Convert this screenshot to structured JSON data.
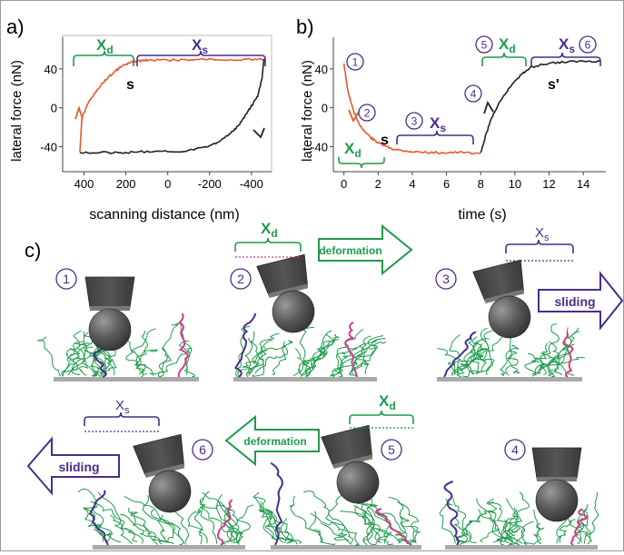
{
  "panels": {
    "a": {
      "letter": "a)"
    },
    "b": {
      "letter": "b)"
    },
    "c": {
      "letter": "c)"
    }
  },
  "chart_data": [
    {
      "type": "line",
      "panel": "a",
      "xlabel": "scanning distance (nm)",
      "ylabel": "lateral force (nN)",
      "xticks": [
        "400",
        "200",
        "0",
        "-200",
        "-400"
      ],
      "yticks": [
        "40",
        "0",
        "-40"
      ],
      "xlim": [
        450,
        -470
      ],
      "ylim": [
        -60,
        65
      ],
      "series": [
        {
          "color": "#e8582e",
          "x": [
            420,
            410,
            380,
            340,
            300,
            260,
            230,
            200,
            170,
            140,
            100,
            0,
            -100,
            -200,
            -300,
            -400,
            -460
          ],
          "y": [
            -46,
            -10,
            5,
            18,
            28,
            36,
            41,
            45,
            47,
            48,
            49,
            49,
            49,
            50,
            49,
            50,
            50
          ]
        },
        {
          "color": "#222222",
          "x": [
            -460,
            -450,
            -430,
            -400,
            -370,
            -340,
            -300,
            -260,
            -200,
            -100,
            0,
            100,
            200,
            300,
            420
          ],
          "y": [
            50,
            30,
            12,
            2,
            -8,
            -18,
            -26,
            -33,
            -39,
            -44,
            -45,
            -45,
            -46,
            -46,
            -46
          ]
        }
      ],
      "annotations": {
        "xd": "X",
        "xd_sub": "d",
        "xs": "X",
        "xs_sub": "s",
        "s": "s"
      }
    },
    {
      "type": "line",
      "panel": "b",
      "xlabel": "time (s)",
      "ylabel": "lateral force (nN)",
      "xticks": [
        "0",
        "2",
        "4",
        "6",
        "8",
        "10",
        "12",
        "14"
      ],
      "yticks": [
        "40",
        "0",
        "-40"
      ],
      "xlim": [
        -0.3,
        15
      ],
      "ylim": [
        -60,
        65
      ],
      "series": [
        {
          "color": "#e8582e",
          "x": [
            0,
            0.2,
            0.5,
            0.8,
            1.2,
            1.6,
            2,
            2.5,
            3,
            4,
            5,
            6,
            7,
            8
          ],
          "y": [
            46,
            20,
            0,
            -14,
            -24,
            -31,
            -36,
            -40,
            -43,
            -45,
            -46,
            -46,
            -46,
            -47
          ]
        },
        {
          "color": "#222222",
          "x": [
            8,
            8.3,
            8.6,
            9,
            9.5,
            10,
            10.5,
            11,
            12,
            13,
            14,
            15
          ],
          "y": [
            -47,
            -28,
            -12,
            2,
            16,
            28,
            36,
            42,
            46,
            47,
            48,
            48
          ]
        }
      ],
      "annotations": {
        "steps": [
          "1",
          "2",
          "3",
          "4",
          "5",
          "6"
        ],
        "xd": "X",
        "xd_sub": "d",
        "xs": "X",
        "xs_sub": "s",
        "s": "s",
        "s_prime": "s'"
      }
    }
  ],
  "diagram": {
    "steps": [
      "1",
      "2",
      "3",
      "4",
      "5",
      "6"
    ],
    "arrows": {
      "deformation_right": "deformation",
      "sliding_right": "sliding",
      "deformation_left": "deformation",
      "sliding_left": "sliding"
    },
    "labels": {
      "xd": "X",
      "xd_sub": "d",
      "xs": "X",
      "xs_sub": "s"
    },
    "colors": {
      "green": "#1e9b4b",
      "purple": "#4a2d8a",
      "orange": "#e8582e",
      "pink": "#d43a8a",
      "tip": "#555555"
    }
  }
}
